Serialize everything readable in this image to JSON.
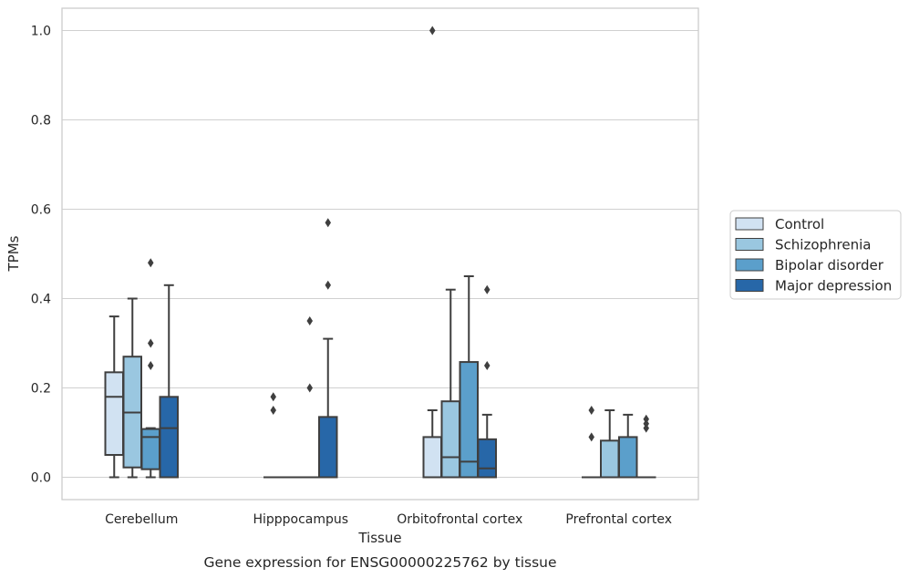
{
  "chart_data": {
    "type": "box",
    "xlabel": "Tissue",
    "ylabel": "TPMs",
    "caption": "Gene expression for ENSG00000225762 by tissue",
    "ylim": [
      -0.05,
      1.05
    ],
    "yticks": [
      "0.0",
      "0.2",
      "0.4",
      "0.6",
      "0.8",
      "1.0"
    ],
    "ytick_values": [
      0.0,
      0.2,
      0.4,
      0.6,
      0.8,
      1.0
    ],
    "grid": "horizontal",
    "legend_position": "right",
    "categories": [
      "Cerebellum",
      "Hipppocampus",
      "Orbitofrontal cortex",
      "Prefrontal cortex"
    ],
    "series": [
      {
        "name": "Control",
        "color": "#d1e2f2",
        "boxes": [
          {
            "whislo": 0.0,
            "q1": 0.05,
            "med": 0.18,
            "q3": 0.235,
            "whishi": 0.36,
            "fliers": []
          },
          {
            "whislo": 0.0,
            "q1": 0.0,
            "med": 0.0,
            "q3": 0.0,
            "whishi": 0.0,
            "fliers": [
              0.15,
              0.18
            ]
          },
          {
            "whislo": 0.0,
            "q1": 0.0,
            "med": 0.0,
            "q3": 0.09,
            "whishi": 0.15,
            "fliers": [
              1.0
            ]
          },
          {
            "whislo": 0.0,
            "q1": 0.0,
            "med": 0.0,
            "q3": 0.0,
            "whishi": 0.0,
            "fliers": [
              0.09,
              0.15
            ]
          }
        ]
      },
      {
        "name": "Schizophrenia",
        "color": "#9ac7e0",
        "boxes": [
          {
            "whislo": 0.0,
            "q1": 0.022,
            "med": 0.145,
            "q3": 0.27,
            "whishi": 0.4,
            "fliers": []
          },
          {
            "whislo": 0.0,
            "q1": 0.0,
            "med": 0.0,
            "q3": 0.0,
            "whishi": 0.0,
            "fliers": []
          },
          {
            "whislo": 0.0,
            "q1": 0.0,
            "med": 0.045,
            "q3": 0.17,
            "whishi": 0.42,
            "fliers": []
          },
          {
            "whislo": 0.0,
            "q1": 0.0,
            "med": 0.0,
            "q3": 0.082,
            "whishi": 0.15,
            "fliers": []
          }
        ]
      },
      {
        "name": "Bipolar disorder",
        "color": "#5b9fcb",
        "boxes": [
          {
            "whislo": 0.0,
            "q1": 0.018,
            "med": 0.09,
            "q3": 0.108,
            "whishi": 0.11,
            "fliers": [
              0.25,
              0.3,
              0.48
            ]
          },
          {
            "whislo": 0.0,
            "q1": 0.0,
            "med": 0.0,
            "q3": 0.0,
            "whishi": 0.0,
            "fliers": [
              0.2,
              0.35
            ]
          },
          {
            "whislo": 0.0,
            "q1": 0.0,
            "med": 0.035,
            "q3": 0.258,
            "whishi": 0.45,
            "fliers": []
          },
          {
            "whislo": 0.0,
            "q1": 0.0,
            "med": 0.0,
            "q3": 0.09,
            "whishi": 0.14,
            "fliers": []
          }
        ]
      },
      {
        "name": "Major depression",
        "color": "#2767a8",
        "boxes": [
          {
            "whislo": 0.0,
            "q1": 0.0,
            "med": 0.11,
            "q3": 0.18,
            "whishi": 0.43,
            "fliers": []
          },
          {
            "whislo": 0.0,
            "q1": 0.0,
            "med": 0.0,
            "q3": 0.135,
            "whishi": 0.31,
            "fliers": [
              0.43,
              0.57
            ]
          },
          {
            "whislo": 0.0,
            "q1": 0.0,
            "med": 0.02,
            "q3": 0.085,
            "whishi": 0.14,
            "fliers": [
              0.25,
              0.42
            ]
          },
          {
            "whislo": 0.0,
            "q1": 0.0,
            "med": 0.0,
            "q3": 0.0,
            "whishi": 0.0,
            "fliers": [
              0.11,
              0.12,
              0.13
            ]
          }
        ]
      }
    ]
  }
}
